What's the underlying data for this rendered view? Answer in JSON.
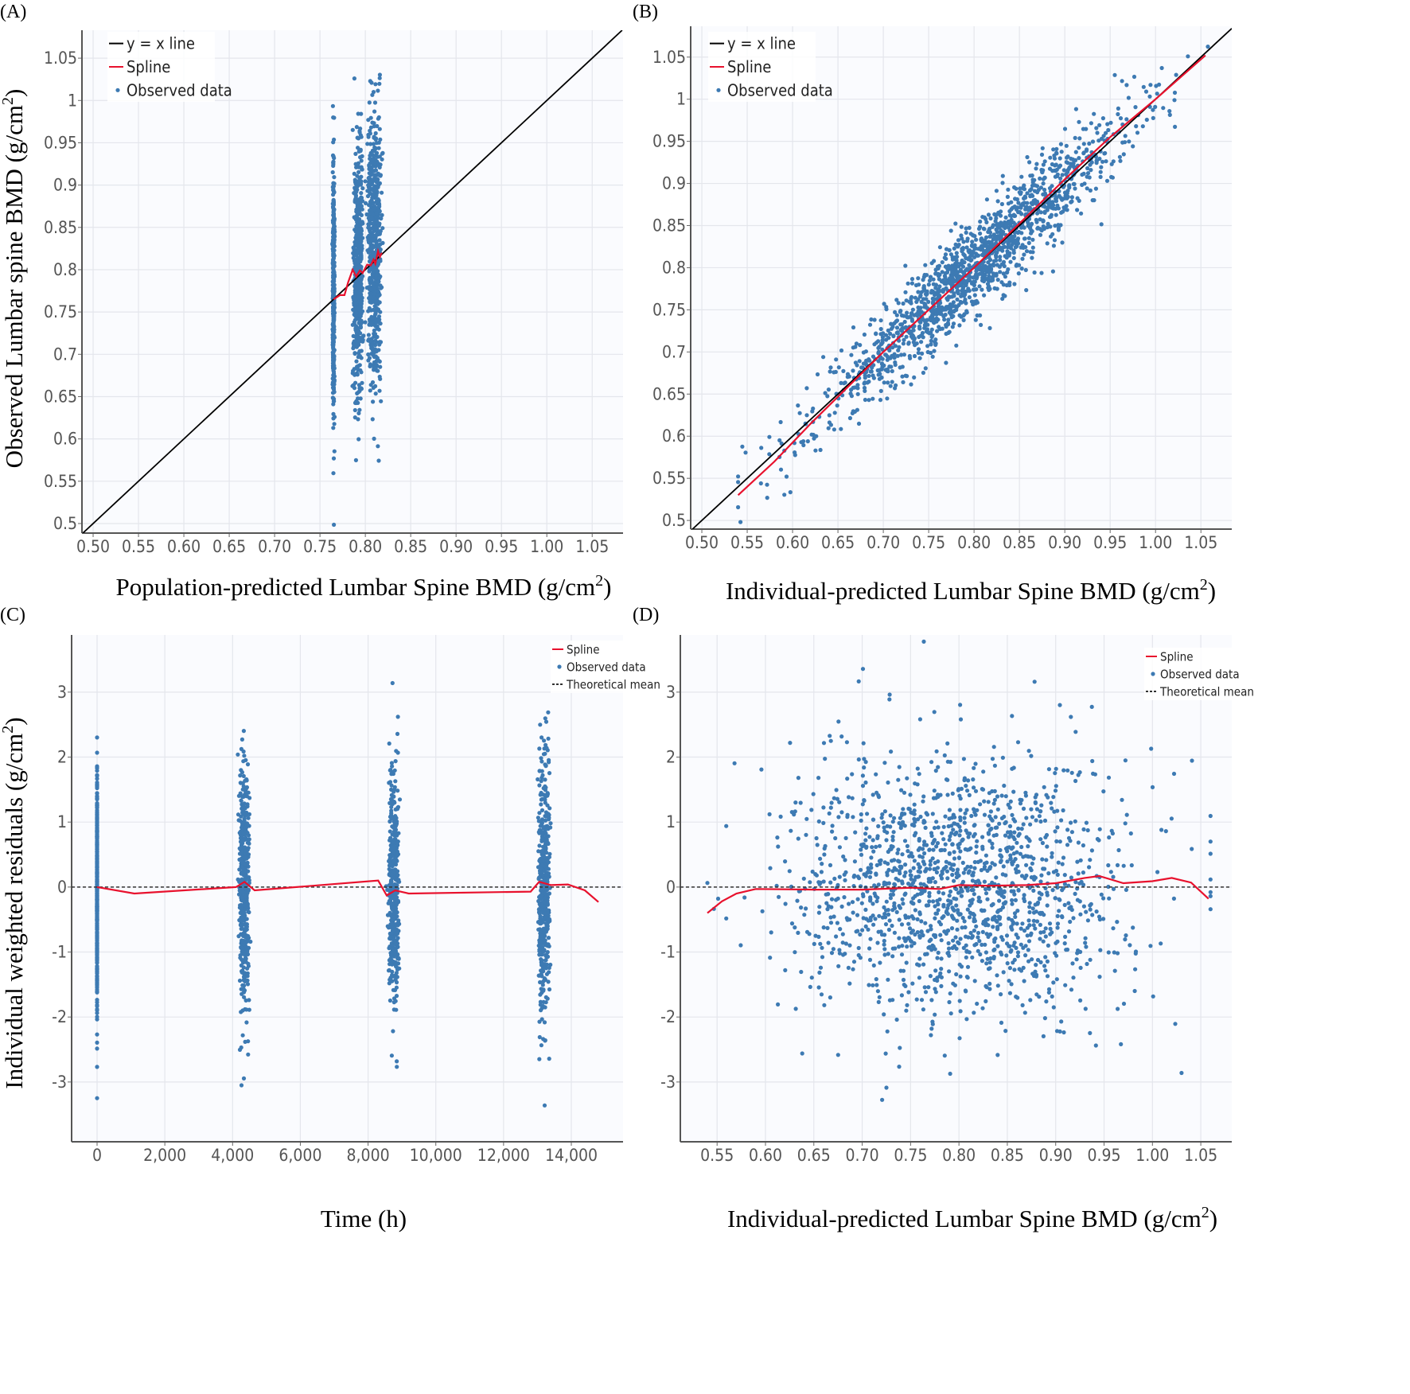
{
  "colors": {
    "points": "#3d7ab3",
    "spline": "#e8112d",
    "identity": "#000000",
    "plot_bg": "#fafbfe",
    "grid": "#e4e6ec"
  },
  "chart_data": [
    {
      "id": "A",
      "panel_label": "(A)",
      "type": "scatter",
      "xlabel": "Population-predicted Lumbar Spine BMD (g/cm",
      "xlabel_sup": "2",
      "xlabel_end": ")",
      "ylabel": "Observed Lumbar spine BMD (g/cm",
      "ylabel_sup": "2",
      "ylabel_end": ")",
      "xlim": [
        0.4877,
        1.084
      ],
      "ylim": [
        0.4887,
        1.083
      ],
      "xticks": [
        0.5,
        0.55,
        0.6,
        0.65,
        0.7,
        0.75,
        0.8,
        0.85,
        0.9,
        0.95,
        1.0,
        1.05
      ],
      "xtick_labels": [
        "0.50",
        "0.55",
        "0.60",
        "0.65",
        "0.70",
        "0.75",
        "0.80",
        "0.85",
        "0.90",
        "0.95",
        "1.00",
        "1.05"
      ],
      "yticks": [
        0.5,
        0.55,
        0.6,
        0.65,
        0.7,
        0.75,
        0.8,
        0.85,
        0.9,
        0.95,
        1,
        1.05
      ],
      "ytick_labels": [
        "0.5",
        "0.55",
        "0.6",
        "0.65",
        "0.7",
        "0.75",
        "0.8",
        "0.85",
        "0.9",
        "0.95",
        "1",
        "1.05"
      ],
      "legend": [
        "y = x line",
        "Spline",
        "Observed data"
      ],
      "legend_position": "top-left",
      "grid": true,
      "identity_line": true,
      "spline": [
        [
          0.765,
          0.765
        ],
        [
          0.772,
          0.77
        ],
        [
          0.777,
          0.77
        ],
        [
          0.781,
          0.785
        ],
        [
          0.786,
          0.8
        ],
        [
          0.79,
          0.792
        ],
        [
          0.794,
          0.799
        ],
        [
          0.797,
          0.796
        ],
        [
          0.802,
          0.806
        ],
        [
          0.806,
          0.805
        ],
        [
          0.809,
          0.812
        ],
        [
          0.811,
          0.807
        ],
        [
          0.814,
          0.822
        ],
        [
          0.816,
          0.815
        ],
        [
          0.818,
          0.82
        ]
      ],
      "scatter_clusters": [
        {
          "x_center": 0.765,
          "x_spread": 0.0008,
          "y_mean": 0.77,
          "y_sd": 0.075,
          "n": 420
        },
        {
          "x_center": 0.792,
          "x_spread": 0.004,
          "y_mean": 0.8,
          "y_sd": 0.075,
          "n": 520
        },
        {
          "x_center": 0.81,
          "x_spread": 0.006,
          "y_mean": 0.825,
          "y_sd": 0.078,
          "n": 620
        }
      ]
    },
    {
      "id": "B",
      "panel_label": "(B)",
      "type": "scatter",
      "xlabel": "Individual-predicted Lumbar Spine BMD (g/cm",
      "xlabel_sup": "2",
      "xlabel_end": ")",
      "xlim": [
        0.4877,
        1.084
      ],
      "ylim": [
        0.4897,
        1.0866
      ],
      "xticks": [
        0.5,
        0.55,
        0.6,
        0.65,
        0.7,
        0.75,
        0.8,
        0.85,
        0.9,
        0.95,
        1.0,
        1.05
      ],
      "xtick_labels": [
        "0.50",
        "0.55",
        "0.60",
        "0.65",
        "0.70",
        "0.75",
        "0.80",
        "0.85",
        "0.90",
        "0.95",
        "1.00",
        "1.05"
      ],
      "yticks": [
        0.5,
        0.55,
        0.6,
        0.65,
        0.7,
        0.75,
        0.8,
        0.85,
        0.9,
        0.95,
        1,
        1.05
      ],
      "ytick_labels": [
        "0.5",
        "0.55",
        "0.6",
        "0.65",
        "0.7",
        "0.75",
        "0.8",
        "0.85",
        "0.9",
        "0.95",
        "1",
        "1.05"
      ],
      "legend": [
        "y = x line",
        "Spline",
        "Observed data"
      ],
      "legend_position": "top-left",
      "grid": true,
      "identity_line": true,
      "spline": [
        [
          0.54,
          0.53
        ],
        [
          0.58,
          0.57
        ],
        [
          0.62,
          0.615
        ],
        [
          0.7,
          0.7
        ],
        [
          0.8,
          0.8
        ],
        [
          0.9,
          0.905
        ],
        [
          0.95,
          0.955
        ],
        [
          1.0,
          1.0
        ],
        [
          1.055,
          1.052
        ]
      ],
      "scatter_model": {
        "x_mean": 0.8,
        "x_sd": 0.085,
        "x_min": 0.54,
        "x_max": 1.06,
        "y_equals_x_sd": 0.026,
        "n": 1560
      }
    },
    {
      "id": "C",
      "panel_label": "(C)",
      "type": "scatter",
      "xlabel": "Time (h)",
      "ylabel": "Individual weighted residuals (g/cm",
      "ylabel_sup": "2",
      "ylabel_end": ")",
      "xlim": [
        -752,
        15527
      ],
      "ylim": [
        -3.92,
        3.88
      ],
      "xticks": [
        0,
        2000,
        4000,
        6000,
        8000,
        10000,
        12000,
        14000
      ],
      "xtick_labels": [
        "0",
        "2,000",
        "4,000",
        "6,000",
        "8,000",
        "10,000",
        "12,000",
        "14,000"
      ],
      "yticks": [
        -3,
        -2,
        -1,
        0,
        1,
        2,
        3
      ],
      "ytick_labels": [
        "-3",
        "-2",
        "-1",
        "0",
        "1",
        "2",
        "3"
      ],
      "legend": [
        "Spline",
        "Observed data",
        "Theoretical mean"
      ],
      "legend_position": "top-right",
      "grid": true,
      "theoretical_mean": 0,
      "spline": [
        [
          0,
          0
        ],
        [
          1100,
          -0.1
        ],
        [
          4100,
          0
        ],
        [
          4350,
          0.08
        ],
        [
          4650,
          -0.05
        ],
        [
          8300,
          0.1
        ],
        [
          8550,
          -0.13
        ],
        [
          8800,
          -0.05
        ],
        [
          9200,
          -0.1
        ],
        [
          12800,
          -0.07
        ],
        [
          13050,
          0.08
        ],
        [
          13400,
          0.03
        ],
        [
          13900,
          0.04
        ],
        [
          14400,
          -0.05
        ],
        [
          14800,
          -0.23
        ]
      ],
      "scatter_clusters": [
        {
          "x_center": 0,
          "x_spread": 0,
          "y_mean": 0,
          "y_sd": 0.9,
          "n": 420
        },
        {
          "x_center": 4350,
          "x_spread": 120,
          "y_mean": 0,
          "y_sd": 0.95,
          "n": 420
        },
        {
          "x_center": 8750,
          "x_spread": 120,
          "y_mean": 0,
          "y_sd": 0.95,
          "n": 420
        },
        {
          "x_center": 13200,
          "x_spread": 130,
          "y_mean": 0,
          "y_sd": 0.95,
          "n": 420
        }
      ]
    },
    {
      "id": "D",
      "panel_label": "(D)",
      "type": "scatter",
      "xlabel": "Individual-predicted Lumbar Spine BMD (g/cm",
      "xlabel_sup": "2",
      "xlabel_end": ")",
      "xlim": [
        0.512,
        1.082
      ],
      "ylim": [
        -3.92,
        3.88
      ],
      "xticks": [
        0.55,
        0.6,
        0.65,
        0.7,
        0.75,
        0.8,
        0.85,
        0.9,
        0.95,
        1.0,
        1.05
      ],
      "xtick_labels": [
        "0.55",
        "0.60",
        "0.65",
        "0.70",
        "0.75",
        "0.80",
        "0.85",
        "0.90",
        "0.95",
        "1.00",
        "1.05"
      ],
      "yticks": [
        -3,
        -2,
        -1,
        0,
        1,
        2,
        3
      ],
      "ytick_labels": [
        "-3",
        "-2",
        "-1",
        "0",
        "1",
        "2",
        "3"
      ],
      "legend": [
        "Spline",
        "Observed data",
        "Theoretical mean"
      ],
      "legend_position": "top-right",
      "grid": true,
      "theoretical_mean": 0,
      "spline": [
        [
          0.54,
          -0.4
        ],
        [
          0.555,
          -0.22
        ],
        [
          0.57,
          -0.1
        ],
        [
          0.59,
          -0.03
        ],
        [
          0.65,
          -0.04
        ],
        [
          0.7,
          -0.04
        ],
        [
          0.75,
          -0.01
        ],
        [
          0.78,
          -0.03
        ],
        [
          0.8,
          0.03
        ],
        [
          0.83,
          0.02
        ],
        [
          0.87,
          0.03
        ],
        [
          0.9,
          0.06
        ],
        [
          0.93,
          0.14
        ],
        [
          0.945,
          0.17
        ],
        [
          0.97,
          0.06
        ],
        [
          1.0,
          0.09
        ],
        [
          1.02,
          0.14
        ],
        [
          1.04,
          0.07
        ],
        [
          1.058,
          -0.18
        ]
      ],
      "scatter_model": {
        "x_mean": 0.8,
        "x_sd": 0.085,
        "x_min": 0.54,
        "x_max": 1.06,
        "resid_mean": 0,
        "resid_sd": 1.0,
        "n": 1560
      }
    }
  ]
}
